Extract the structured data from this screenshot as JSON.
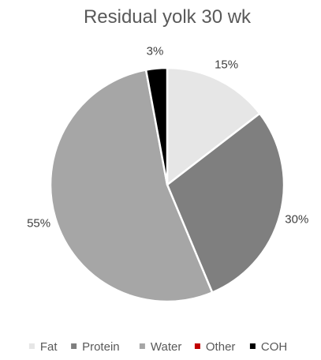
{
  "chart_data": {
    "type": "pie",
    "title": "Residual yolk 30 wk",
    "categories": [
      "Fat",
      "Protein",
      "Water",
      "Other",
      "COH"
    ],
    "values": [
      15,
      30,
      55,
      0,
      3
    ],
    "data_labels": [
      "15%",
      "30%",
      "55%",
      "",
      "3%"
    ],
    "colors": [
      "#e6e6e6",
      "#7f7f7f",
      "#a6a6a6",
      "#c00000",
      "#000000"
    ],
    "legend": {
      "position": "bottom",
      "entries": [
        "Fat",
        "Protein",
        "Water",
        "Other",
        "COH"
      ]
    },
    "start_angle_deg": 0,
    "direction": "clockwise"
  }
}
